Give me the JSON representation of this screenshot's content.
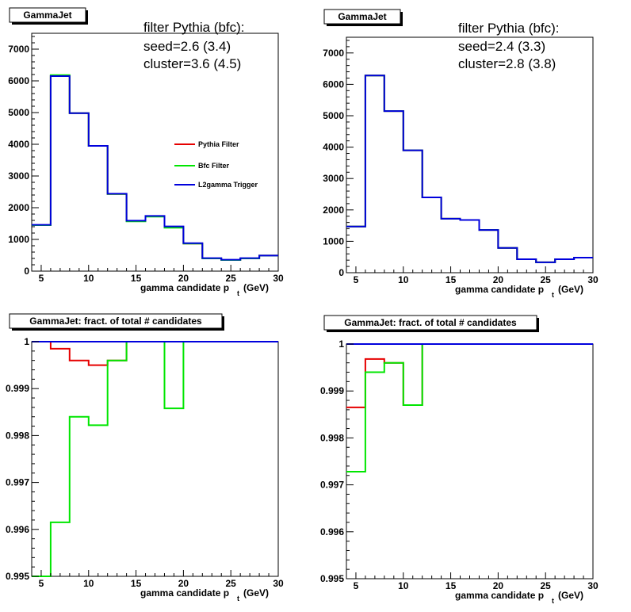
{
  "chart_data": [
    {
      "type": "step",
      "title": "GammaJet",
      "xlabel": "gamma candidate p",
      "xlabel_sub": "t",
      "xlabel_unit": "(GeV)",
      "xlim": [
        4,
        30
      ],
      "ylim": [
        0,
        7500
      ],
      "xticks": [
        5,
        10,
        15,
        20,
        25,
        30
      ],
      "yticks": [
        0,
        1000,
        2000,
        3000,
        4000,
        5000,
        6000,
        7000
      ],
      "annotations": [
        "filter Pythia (bfc):",
        "seed=2.6 (3.4)",
        "cluster=3.6 (4.5)"
      ],
      "bin_edges": [
        4,
        6,
        8,
        10,
        12,
        14,
        16,
        18,
        20,
        22,
        24,
        26,
        28,
        30
      ],
      "series": [
        {
          "name": "Pythia Filter",
          "color": "#e60000",
          "values": [
            1450,
            6150,
            4980,
            3950,
            2430,
            1580,
            1730,
            1390,
            870,
            400,
            350,
            400,
            490
          ]
        },
        {
          "name": "Bfc Filter",
          "color": "#00e600",
          "values": [
            1450,
            6180,
            4980,
            3950,
            2430,
            1570,
            1720,
            1370,
            870,
            400,
            350,
            400,
            490
          ]
        },
        {
          "name": "L2gamma Trigger",
          "color": "#0000dd",
          "values": [
            1460,
            6150,
            4980,
            3950,
            2440,
            1590,
            1740,
            1410,
            880,
            410,
            360,
            410,
            490
          ]
        }
      ]
    },
    {
      "type": "step",
      "title": "GammaJet",
      "xlabel": "gamma candidate p",
      "xlabel_sub": "t",
      "xlabel_unit": "(GeV)",
      "xlim": [
        4,
        30
      ],
      "ylim": [
        0,
        7500
      ],
      "xticks": [
        5,
        10,
        15,
        20,
        25,
        30
      ],
      "yticks": [
        0,
        1000,
        2000,
        3000,
        4000,
        5000,
        6000,
        7000
      ],
      "annotations": [
        "filter Pythia (bfc):",
        "seed=2.4 (3.3)",
        "cluster=2.8 (3.8)"
      ],
      "bin_edges": [
        4,
        6,
        8,
        10,
        12,
        14,
        16,
        18,
        20,
        22,
        24,
        26,
        28,
        30
      ],
      "series": [
        {
          "name": "Pythia Filter",
          "color": "#e60000",
          "values": [
            1470,
            6280,
            5150,
            3900,
            2400,
            1720,
            1680,
            1360,
            790,
            430,
            330,
            430,
            480
          ]
        },
        {
          "name": "Bfc Filter",
          "color": "#00e600",
          "values": [
            1470,
            6280,
            5150,
            3900,
            2400,
            1720,
            1680,
            1360,
            790,
            430,
            330,
            430,
            480
          ]
        },
        {
          "name": "L2gamma Trigger",
          "color": "#0000dd",
          "values": [
            1470,
            6280,
            5150,
            3900,
            2400,
            1720,
            1680,
            1360,
            790,
            430,
            330,
            430,
            480
          ]
        }
      ]
    },
    {
      "type": "step",
      "title": "GammaJet: fract. of total # candidates",
      "xlabel": "gamma candidate p",
      "xlabel_sub": "t",
      "xlabel_unit": "(GeV)",
      "xlim": [
        4,
        30
      ],
      "ylim": [
        0.995,
        1.0
      ],
      "xticks": [
        5,
        10,
        15,
        20,
        25,
        30
      ],
      "yticks": [
        0.995,
        0.996,
        0.997,
        0.998,
        0.999,
        1
      ],
      "ytick_labels": [
        "0.995",
        "0.996",
        "0.997",
        "0.998",
        "0.999",
        "1"
      ],
      "bin_edges": [
        4,
        6,
        8,
        10,
        12,
        14,
        16,
        18,
        20,
        22,
        24,
        26,
        28,
        30
      ],
      "series": [
        {
          "name": "Pythia Filter",
          "color": "#e60000",
          "values": [
            1.0,
            0.99985,
            0.9996,
            0.9995,
            0.9996,
            1.0,
            1.0,
            1.0,
            1.0,
            1.0,
            1.0,
            1.0,
            1.0
          ]
        },
        {
          "name": "Bfc Filter",
          "color": "#00e600",
          "values": [
            0.995,
            0.99615,
            0.9984,
            0.99822,
            0.9996,
            1.0,
            1.0,
            0.99858,
            1.0,
            1.0,
            1.0,
            1.0,
            1.0
          ]
        },
        {
          "name": "L2gamma Trigger",
          "color": "#0000dd",
          "values": [
            1.0,
            1.0,
            1.0,
            1.0,
            1.0,
            1.0,
            1.0,
            1.0,
            1.0,
            1.0,
            1.0,
            1.0,
            1.0
          ]
        }
      ]
    },
    {
      "type": "step",
      "title": "GammaJet: fract. of total # candidates",
      "xlabel": "gamma candidate p",
      "xlabel_sub": "t",
      "xlabel_unit": "(GeV)",
      "xlim": [
        4,
        30
      ],
      "ylim": [
        0.995,
        1.0
      ],
      "xticks": [
        5,
        10,
        15,
        20,
        25,
        30
      ],
      "yticks": [
        0.995,
        0.996,
        0.997,
        0.998,
        0.999,
        1
      ],
      "ytick_labels": [
        "0.995",
        "0.996",
        "0.997",
        "0.998",
        "0.999",
        "1"
      ],
      "bin_edges": [
        4,
        6,
        8,
        10,
        12,
        14,
        16,
        18,
        20,
        22,
        24,
        26,
        28,
        30
      ],
      "series": [
        {
          "name": "Pythia Filter",
          "color": "#e60000",
          "values": [
            0.99865,
            0.99968,
            0.9996,
            0.9987,
            1.0,
            1.0,
            1.0,
            1.0,
            1.0,
            1.0,
            1.0,
            1.0,
            1.0
          ]
        },
        {
          "name": "Bfc Filter",
          "color": "#00e600",
          "values": [
            0.99728,
            0.9994,
            0.9996,
            0.9987,
            1.0,
            1.0,
            1.0,
            1.0,
            1.0,
            1.0,
            1.0,
            1.0,
            1.0
          ]
        },
        {
          "name": "L2gamma Trigger",
          "color": "#0000dd",
          "values": [
            1.0,
            1.0,
            1.0,
            1.0,
            1.0,
            1.0,
            1.0,
            1.0,
            1.0,
            1.0,
            1.0,
            1.0,
            1.0
          ]
        }
      ]
    }
  ],
  "legend": {
    "entries": [
      "Pythia Filter",
      "Bfc Filter",
      "L2gamma Trigger"
    ],
    "colors": [
      "#e60000",
      "#00e600",
      "#0000dd"
    ]
  }
}
